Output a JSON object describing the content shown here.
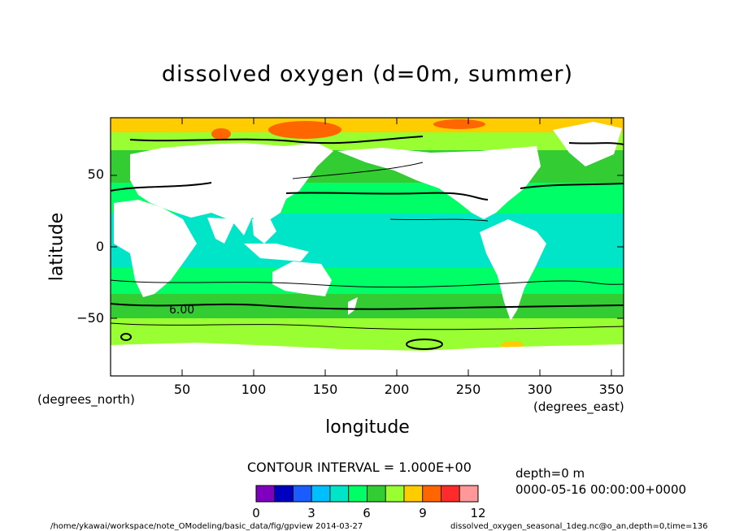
{
  "title": "dissolved oxygen (d=0m, summer)",
  "ylabel": "latitude",
  "xlabel": "longitude",
  "lat_units": "(degrees_north)",
  "lon_units": "(degrees_east)",
  "lat_ticks": [
    "50",
    "0",
    "−50"
  ],
  "lon_ticks": [
    "50",
    "100",
    "150",
    "200",
    "250",
    "300",
    "350"
  ],
  "contour_label": "6.00",
  "contour_interval": "CONTOUR INTERVAL = 1.000E+00",
  "colorbar": {
    "labels": [
      "0",
      "3",
      "6",
      "9",
      "12"
    ],
    "colors": [
      "#7f00bf",
      "#0000bf",
      "#1a5cff",
      "#00bfff",
      "#00e5c8",
      "#00ff66",
      "#33cc33",
      "#99ff33",
      "#ffcc00",
      "#ff6600",
      "#ff2a2a",
      "#ff9999"
    ]
  },
  "info": {
    "depth": "depth=0 m",
    "time": "0000-05-16 00:00:00+0000"
  },
  "footer": {
    "left": "/home/ykawai/workspace/note_OModeling/basic_data/fig/gpview  2014-03-27",
    "right": "dissolved_oxygen_seasonal_1deg.nc@o_an,depth=0,time=136"
  },
  "map_colors": {
    "land": "#ffffff",
    "tropics": "#00e5c8",
    "mid_lat": "#00ff66",
    "subpolar": "#33cc33",
    "polar": "#99ff33",
    "arctic": "#ffcc00",
    "max": "#ff6600"
  }
}
